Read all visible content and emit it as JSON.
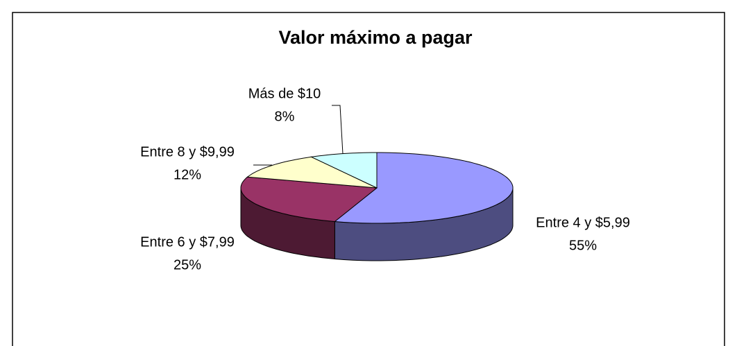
{
  "chart_data": {
    "type": "pie",
    "title": "Valor máximo a pagar",
    "categories": [
      "Entre 4 y $5,99",
      "Entre 6 y $7,99",
      "Entre 8 y $9,99",
      "Más de $10"
    ],
    "values": [
      55,
      25,
      12,
      8
    ],
    "value_labels": [
      "55%",
      "25%",
      "12%",
      "8%"
    ],
    "colors": [
      "#9999ff",
      "#993366",
      "#ffffcc",
      "#ccffff"
    ],
    "side_colors": [
      "#4d4d80",
      "#4d1a33",
      "#80806a",
      "#6a8080"
    ]
  }
}
